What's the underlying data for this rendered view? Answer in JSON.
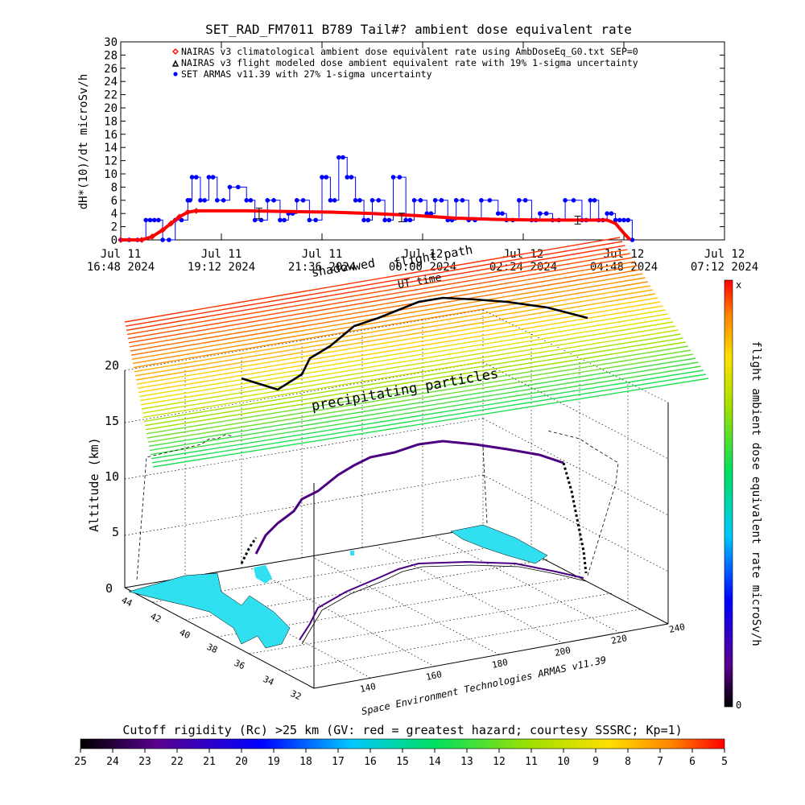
{
  "chart_data": [
    {
      "type": "line",
      "title": "SET_RAD_FM7011  B789 Tail#? ambient dose equivalent rate",
      "ylabel": "dH*(10)/dt microSv/h",
      "ylim": [
        0,
        30
      ],
      "y_ticks": [
        "0",
        "2",
        "4",
        "6",
        "8",
        "10",
        "12",
        "14",
        "16",
        "18",
        "20",
        "22",
        "24",
        "26",
        "28",
        "30"
      ],
      "x_ticks": [
        {
          "line1": "Jul 11",
          "line2": "16:48 2024"
        },
        {
          "line1": "Jul 11",
          "line2": "19:12 2024"
        },
        {
          "line1": "Jul 11",
          "line2": "21:36 2024"
        },
        {
          "line1": "Jul 12",
          "line2": "00:00 2024"
        },
        {
          "line1": "Jul 12",
          "line2": "02:24 2024"
        },
        {
          "line1": "Jul 12",
          "line2": "04:48 2024"
        },
        {
          "line1": "Jul 12",
          "line2": "07:12 2024"
        }
      ],
      "legend": [
        {
          "symbol": "diamond",
          "color": "#ff0000",
          "label": "NAIRAS v3 climatological ambient dose equivalent rate using AmbDoseEq_G0.txt SEP=0"
        },
        {
          "symbol": "triangle",
          "color": "#000000",
          "label": "NAIRAS v3 flight modeled dose ambient equivalent rate with 19% 1-sigma uncertainty"
        },
        {
          "symbol": "dot",
          "color": "#0000ff",
          "label": "SET ARMAS v11.39 with 27% 1-sigma uncertainty"
        }
      ],
      "series": [
        {
          "name": "NAIRAS v3 climatological ambient dose equivalent rate using AmbDoseEq_G0.txt SEP=0",
          "color": "#ff0000",
          "x_hours": [
            0.0,
            0.5,
            0.75,
            1.0,
            1.2,
            1.4,
            1.6,
            1.8,
            2.0,
            3.0,
            4.0,
            5.0,
            6.0,
            7.0,
            8.0,
            9.0,
            10.0,
            11.0,
            11.6,
            11.8,
            12.0,
            12.15
          ],
          "values": [
            0,
            0,
            0.5,
            1.5,
            2.5,
            3.5,
            4.2,
            4.4,
            4.4,
            4.4,
            4.3,
            4.2,
            4.0,
            3.7,
            3.3,
            3.1,
            3.0,
            3.0,
            3.0,
            2.5,
            1.0,
            0
          ]
        },
        {
          "name": "SET ARMAS v11.39 with 27% 1-sigma uncertainty",
          "color": "#0000ff",
          "x_hours": [
            0.0,
            0.4,
            0.6,
            0.8,
            1.0,
            1.3,
            1.6,
            1.7,
            1.9,
            2.1,
            2.3,
            2.6,
            3.0,
            3.2,
            3.5,
            3.8,
            4.0,
            4.2,
            4.5,
            4.8,
            5.0,
            5.2,
            5.4,
            5.6,
            5.8,
            6.0,
            6.3,
            6.5,
            6.8,
            7.0,
            7.3,
            7.5,
            7.8,
            8.0,
            8.3,
            8.6,
            9.0,
            9.2,
            9.5,
            9.8,
            10.0,
            10.3,
            10.6,
            11.0,
            11.2,
            11.4,
            11.6,
            11.8,
            12.0,
            12.2
          ],
          "values": [
            0,
            0,
            3,
            3,
            0,
            3,
            6,
            9.5,
            6,
            9.5,
            6,
            8,
            6,
            3,
            6,
            3,
            4,
            6,
            3,
            9.5,
            6,
            12.5,
            9.5,
            6,
            3,
            6,
            3,
            9.5,
            3,
            6,
            4,
            6,
            3,
            6,
            3,
            6,
            4,
            3,
            6,
            3,
            4,
            3,
            6,
            3,
            6,
            3,
            4,
            3,
            3,
            0
          ]
        },
        {
          "name": "NAIRAS v3 flight modeled dose ambient equivalent rate with 19% 1-sigma uncertainty",
          "color": "#000000",
          "x_hours": [
            3.3,
            6.7,
            10.9
          ],
          "values": [
            4.0,
            3.4,
            3.0
          ],
          "err": [
            0.8,
            0.65,
            0.6
          ]
        }
      ],
      "xlim_hours": [
        0,
        14.4
      ]
    },
    {
      "type": "scatter",
      "xlabel": "Altitude (km)",
      "z_ticks": [
        "0",
        "5",
        "10",
        "15",
        "20"
      ],
      "lat_ticks": [
        "44",
        "42",
        "40",
        "38",
        "36",
        "34",
        "32"
      ],
      "lon_ticks": [
        "140",
        "160",
        "180",
        "200",
        "220",
        "240"
      ],
      "overlay_labels": [
        "shadow",
        "flight path",
        "UT time",
        "wed",
        "precipitating particles"
      ],
      "credit": "Space Environment Technologies ARMAS v11.39",
      "colorbar_right": {
        "label": "flight ambient dose equivalent rate microSv/h",
        "top": "x",
        "bottom": "0"
      },
      "colorbar_bottom": {
        "label": "Cutoff rigidity (Rc) >25 km (GV: red = greatest hazard; courtesy SSSRC; Kp=1)",
        "ticks": [
          "25",
          "24",
          "23",
          "22",
          "21",
          "20",
          "19",
          "18",
          "17",
          "16",
          "15",
          "14",
          "13",
          "12",
          "11",
          "10",
          "9",
          "8",
          "7",
          "6",
          "5"
        ]
      }
    }
  ]
}
